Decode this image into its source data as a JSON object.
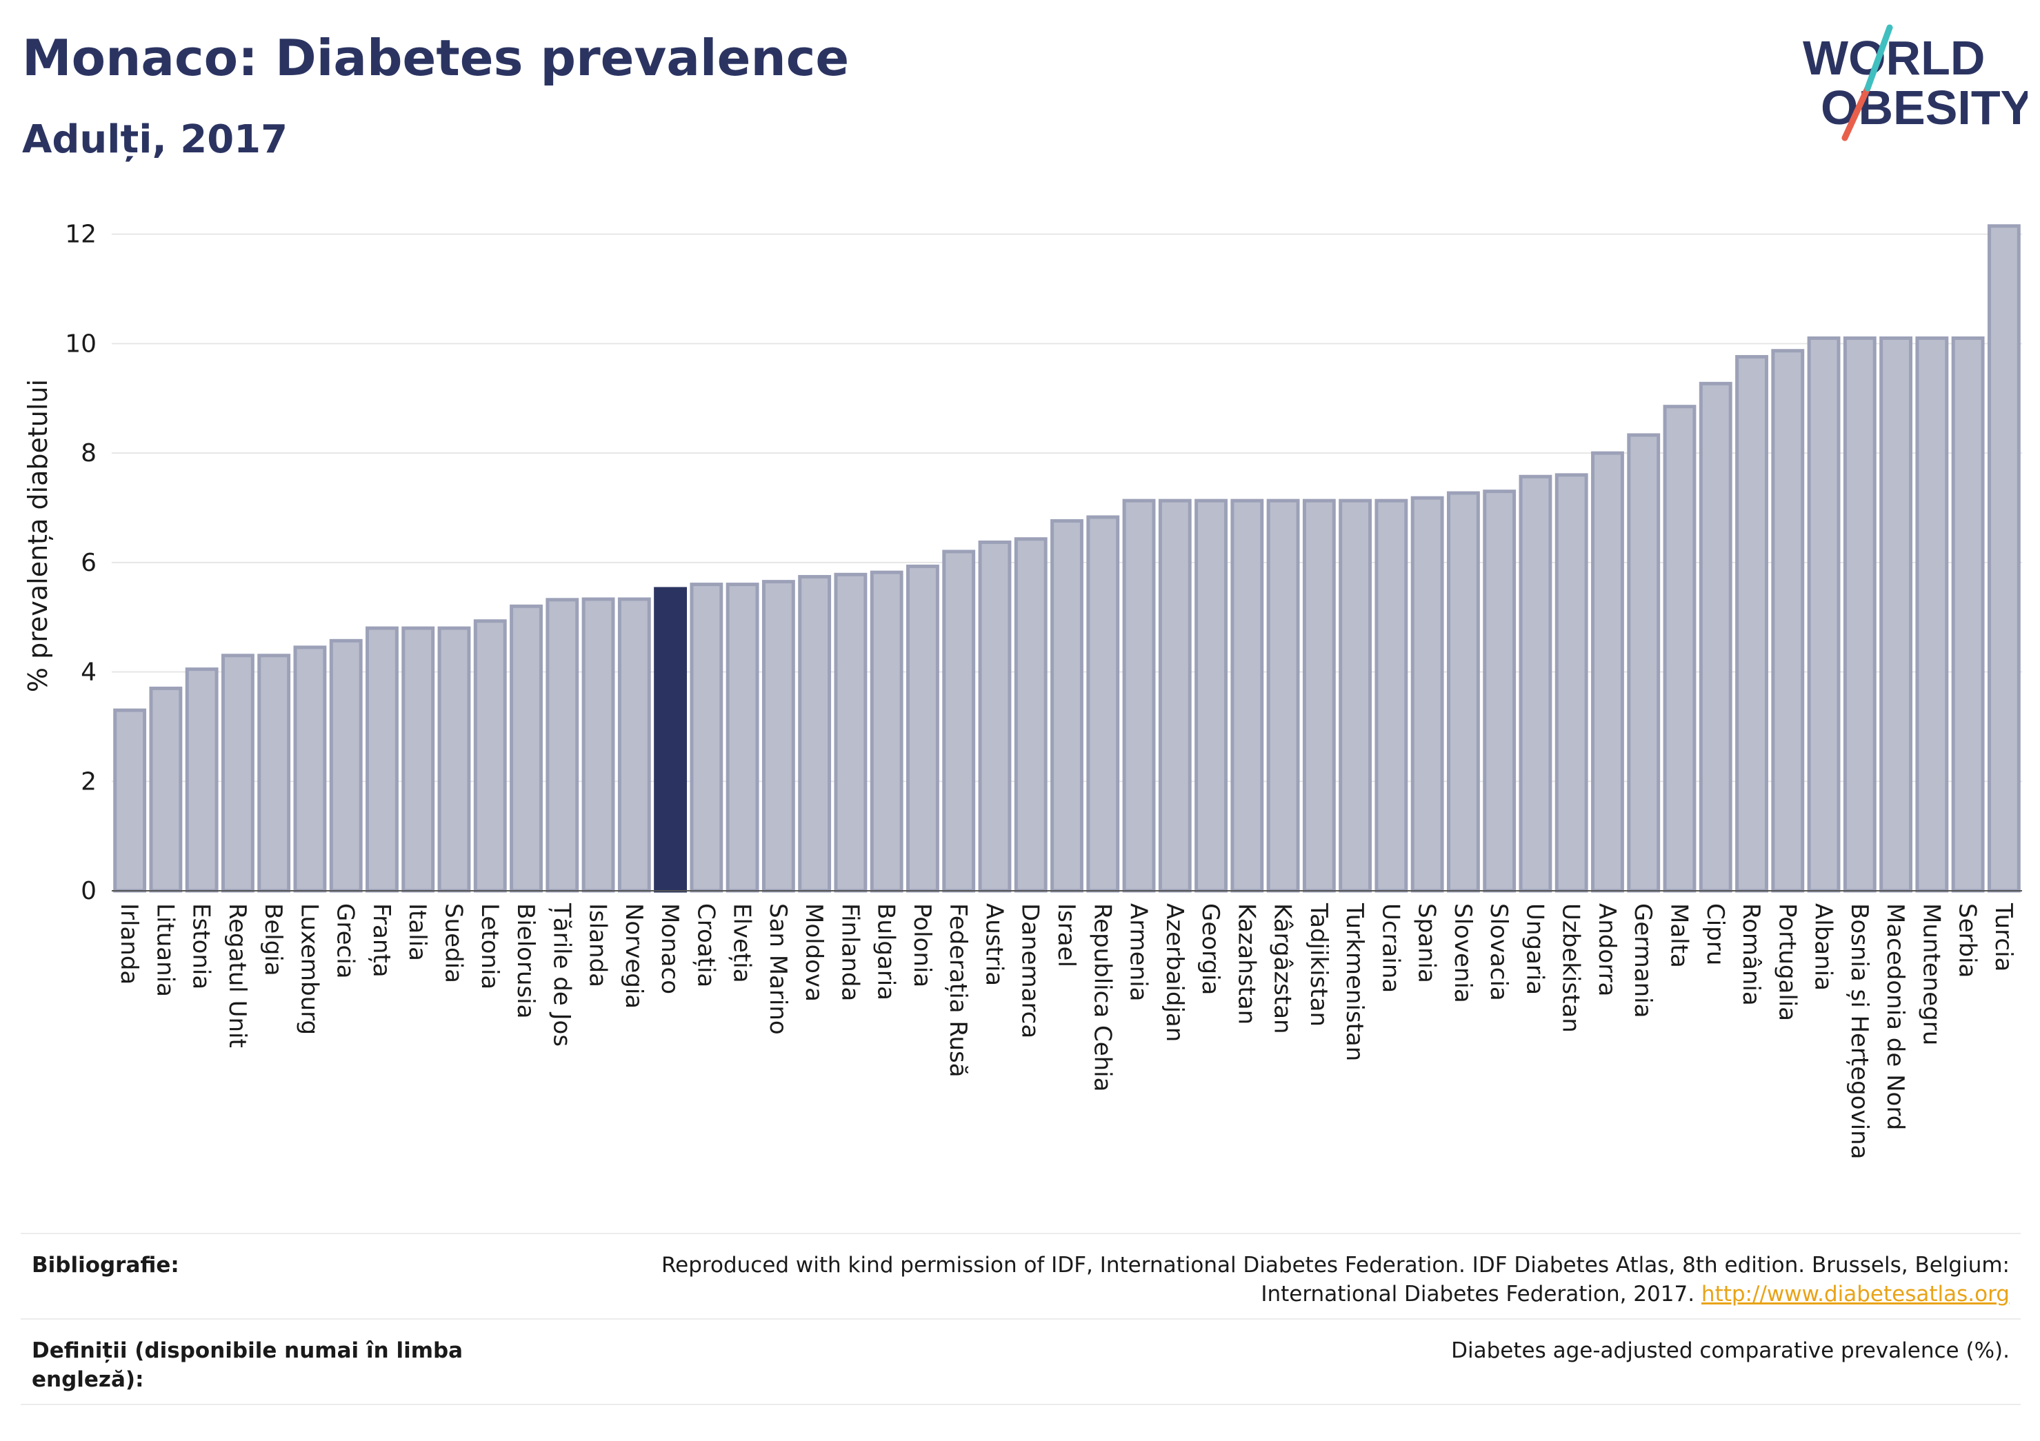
{
  "header": {
    "title": "Monaco: Diabetes prevalence",
    "subtitle": "Adulți, 2017",
    "logo_line1": "WORLD",
    "logo_line2": "OBESITY"
  },
  "colors": {
    "bar": "#b9bdcc",
    "bar_stroke": "#9ca1b8",
    "highlight": "#2b3461",
    "grid": "#e6e6e6",
    "link": "#e8a317"
  },
  "chart_data": {
    "type": "bar",
    "title": "Monaco: Diabetes prevalence",
    "subtitle": "Adulți, 2017",
    "xlabel": "",
    "ylabel": "% prevalența diabetului",
    "ylim": [
      0,
      12.5
    ],
    "yticks": [
      0,
      2,
      4,
      6,
      8,
      10,
      12
    ],
    "grid": true,
    "highlight": "Monaco",
    "categories": [
      "Irlanda",
      "Lituania",
      "Estonia",
      "Regatul Unit",
      "Belgia",
      "Luxemburg",
      "Grecia",
      "Franța",
      "Italia",
      "Suedia",
      "Letonia",
      "Bielorusia",
      "Țările de Jos",
      "Islanda",
      "Norvegia",
      "Monaco",
      "Croația",
      "Elveția",
      "San Marino",
      "Moldova",
      "Finlanda",
      "Bulgaria",
      "Polonia",
      "Federația Rusă",
      "Austria",
      "Danemarca",
      "Israel",
      "Republica Cehia",
      "Armenia",
      "Azerbaidjan",
      "Georgia",
      "Kazahstan",
      "Kârgâzstan",
      "Tadjikistan",
      "Turkmenistan",
      "Ucraina",
      "Spania",
      "Slovenia",
      "Slovacia",
      "Ungaria",
      "Uzbekistan",
      "Andorra",
      "Germania",
      "Malta",
      "Cipru",
      "România",
      "Portugalia",
      "Albania",
      "Bosnia și Herțegovina",
      "Macedonia de Nord",
      "Muntenegru",
      "Serbia",
      "Turcia"
    ],
    "values": [
      3.3,
      3.7,
      4.05,
      4.3,
      4.3,
      4.45,
      4.57,
      4.8,
      4.8,
      4.8,
      4.93,
      5.2,
      5.32,
      5.33,
      5.33,
      5.52,
      5.6,
      5.6,
      5.65,
      5.74,
      5.78,
      5.82,
      5.93,
      6.2,
      6.37,
      6.43,
      6.76,
      6.83,
      7.13,
      7.13,
      7.13,
      7.13,
      7.13,
      7.13,
      7.13,
      7.13,
      7.18,
      7.27,
      7.3,
      7.57,
      7.6,
      8.0,
      8.33,
      8.85,
      9.27,
      9.76,
      9.87,
      10.1,
      10.1,
      10.1,
      10.1,
      10.1,
      12.15
    ]
  },
  "footer": {
    "bibliography_label": "Bibliografie:",
    "bibliography_line1": "Reproduced with kind permission of IDF, International Diabetes Federation. IDF Diabetes Atlas, 8th edition. Brussels, Belgium:",
    "bibliography_line2": "International Diabetes Federation, 2017.",
    "bibliography_link": "http://www.diabetesatlas.org",
    "definitions_label": "Definiții (disponibile numai în limba engleză):",
    "definitions_text": "Diabetes age-adjusted comparative prevalence (%)."
  }
}
